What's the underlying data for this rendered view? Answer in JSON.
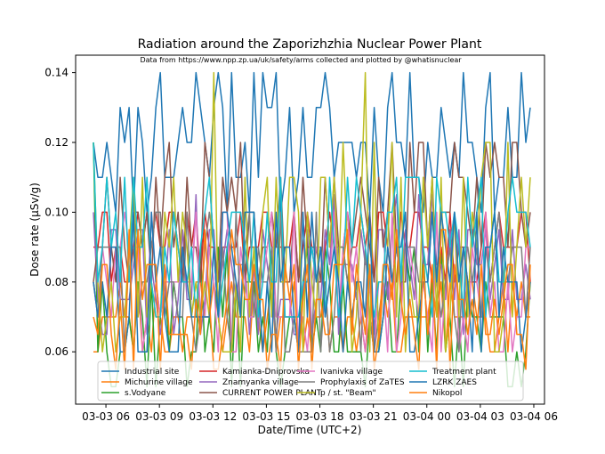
{
  "chart_data": {
    "type": "line",
    "title": "Radiation around the Zaporizhzhia Nuclear Power Plant",
    "subtitle": "Data from https://www.npp.zp.ua/uk/safety/arms collected and plotted by @whatisnuclear",
    "xlabel": "Date/Time (UTC+2)",
    "ylabel": "Dose rate (µSv/g)",
    "x_range_hours": [
      4.3,
      30.6
    ],
    "ylim": [
      0.045,
      0.145
    ],
    "x_ticks": [
      {
        "value": 6,
        "label": "03-03 06"
      },
      {
        "value": 9,
        "label": "03-03 09"
      },
      {
        "value": 12,
        "label": "03-03 12"
      },
      {
        "value": 15,
        "label": "03-03 15"
      },
      {
        "value": 18,
        "label": "03-03 18"
      },
      {
        "value": 21,
        "label": "03-03 21"
      },
      {
        "value": 24,
        "label": "03-04 00"
      },
      {
        "value": 27,
        "label": "03-04 03"
      },
      {
        "value": 30,
        "label": "03-04 06"
      }
    ],
    "y_ticks": [
      {
        "value": 0.06,
        "label": "0.06"
      },
      {
        "value": 0.08,
        "label": "0.08"
      },
      {
        "value": 0.1,
        "label": "0.10"
      },
      {
        "value": 0.12,
        "label": "0.12"
      },
      {
        "value": 0.14,
        "label": "0.14"
      }
    ],
    "grid": false,
    "legend_position": "bottom-center",
    "series": [
      {
        "name": "Industrial site",
        "color": "#1f77b4",
        "baseline": 0.12,
        "step": 0.01,
        "spread": 2,
        "t0": 5.3,
        "seed": 11,
        "anchors": [
          [
            5.3,
            0.12
          ],
          [
            6.0,
            0.12
          ],
          [
            7.0,
            0.12
          ],
          [
            8.0,
            0.12
          ],
          [
            9.0,
            0.14
          ],
          [
            11.0,
            0.14
          ],
          [
            12.2,
            0.14
          ],
          [
            13.0,
            0.14
          ],
          [
            14.3,
            0.14
          ],
          [
            22.0,
            0.14
          ],
          [
            26.0,
            0.14
          ],
          [
            30.0,
            0.11
          ]
        ]
      },
      {
        "name": "Michurine village",
        "color": "#ff7f0e",
        "baseline": 0.07,
        "step": 0.01,
        "spread": 1,
        "t0": 5.3,
        "seed": 23,
        "anchors": [
          [
            5.3,
            0.06
          ],
          [
            30.0,
            0.07
          ]
        ]
      },
      {
        "name": "s.Vodyane",
        "color": "#2ca02c",
        "baseline": 0.07,
        "step": 0.01,
        "spread": 2,
        "t0": 5.3,
        "seed": 37,
        "anchors": [
          [
            5.3,
            0.12
          ],
          [
            30.0,
            0.07
          ]
        ]
      },
      {
        "name": "Kamianka-Dniprovska",
        "color": "#d62728",
        "baseline": 0.09,
        "step": 0.01,
        "spread": 1,
        "t0": 5.3,
        "seed": 41,
        "anchors": [
          [
            5.3,
            0.09
          ],
          [
            30.0,
            0.09
          ]
        ]
      },
      {
        "name": "Znamyanka village",
        "color": "#9467bd",
        "baseline": 0.085,
        "step": 0.01,
        "spread": 2,
        "t0": 5.3,
        "seed": 53,
        "anchors": [
          [
            5.3,
            0.1
          ],
          [
            30.0,
            0.09
          ]
        ]
      },
      {
        "name": "CURRENT POWER PLANT",
        "color": "#8c564b",
        "baseline": 0.1,
        "step": 0.01,
        "spread": 2,
        "t0": 5.3,
        "seed": 67,
        "anchors": [
          [
            5.3,
            0.08
          ],
          [
            30.0,
            0.11
          ]
        ]
      },
      {
        "name": "Ivanivka village",
        "color": "#e377c2",
        "baseline": 0.08,
        "step": 0.01,
        "spread": 2,
        "t0": 5.3,
        "seed": 71,
        "anchors": [
          [
            5.3,
            0.08
          ],
          [
            30.0,
            0.09
          ]
        ]
      },
      {
        "name": "Prophylaxis of ZaTES",
        "color": "#7f7f7f",
        "baseline": 0.08,
        "step": 0.01,
        "spread": 2,
        "t0": 5.3,
        "seed": 83,
        "anchors": [
          [
            5.3,
            0.08
          ],
          [
            30.0,
            0.08
          ]
        ]
      },
      {
        "name": "p / st. \"Beam\"",
        "color": "#bcbd22",
        "baseline": 0.09,
        "step": 0.01,
        "spread": 3,
        "t0": 5.3,
        "seed": 97,
        "anchors": [
          [
            5.3,
            0.12
          ],
          [
            12.0,
            0.14
          ],
          [
            20.5,
            0.14
          ],
          [
            30.0,
            0.09
          ]
        ]
      },
      {
        "name": "Treatment plant",
        "color": "#17becf",
        "baseline": 0.09,
        "step": 0.01,
        "spread": 2,
        "t0": 5.3,
        "seed": 101,
        "anchors": [
          [
            5.3,
            0.12
          ],
          [
            30.0,
            0.1
          ]
        ]
      },
      {
        "name": "LZRK ZAES",
        "color": "#1f77b4",
        "baseline": 0.08,
        "step": 0.01,
        "spread": 2,
        "t0": 5.3,
        "seed": 113,
        "anchors": [
          [
            5.3,
            0.08
          ],
          [
            30.0,
            0.08
          ]
        ]
      },
      {
        "name": "Nikopol",
        "color": "#ff7f0e",
        "baseline": 0.075,
        "step": 0.01,
        "spread": 2,
        "t0": 5.3,
        "seed": 127,
        "anchors": [
          [
            5.3,
            0.07
          ],
          [
            30.0,
            0.07
          ]
        ]
      }
    ]
  }
}
